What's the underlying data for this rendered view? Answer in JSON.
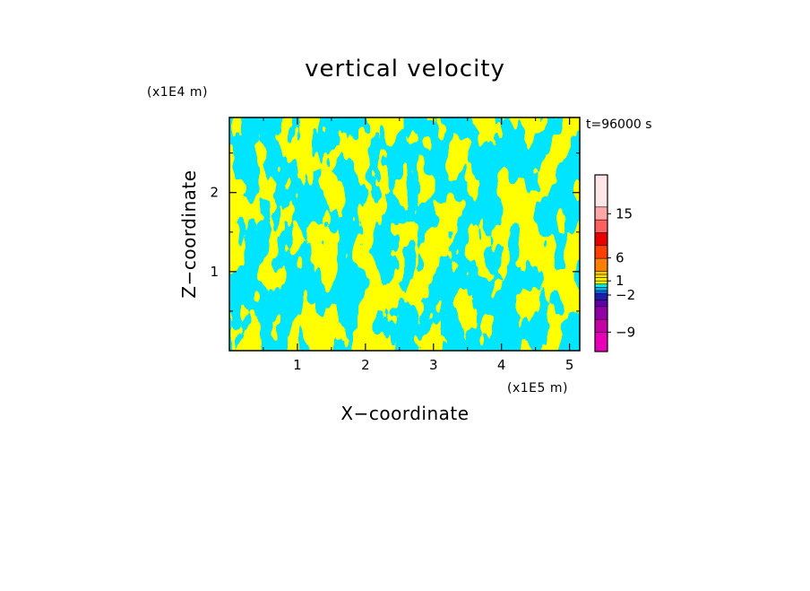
{
  "chart_data": {
    "type": "heatmap",
    "title": "vertical velocity",
    "xlabel": "X−coordinate",
    "ylabel": "Z−coordinate",
    "x_unit": "(x1E5 m)",
    "y_unit": "(x1E4 m)",
    "time_label": "t=96000 s",
    "xlim": [
      0.0,
      5.15
    ],
    "ylim": [
      0.0,
      2.95
    ],
    "x_ticks": [
      1,
      2,
      3,
      4,
      5
    ],
    "y_ticks": [
      1,
      2
    ],
    "x_tick_labels": [
      "1",
      "2",
      "3",
      "4",
      "5"
    ],
    "y_tick_labels": [
      "1",
      "2"
    ],
    "field_colors": {
      "positive": "#ffff00",
      "negative": "#00e5ff"
    },
    "colorbar": {
      "colors": [
        "#e800b8",
        "#c400a6",
        "#9400a8",
        "#6000a8",
        "#1e1ea8",
        "#0060e8",
        "#00b8f0",
        "#00f0f0",
        "#ffff00",
        "#fff000",
        "#ffe000",
        "#ffc800",
        "#ff8000",
        "#ff4000",
        "#e80000",
        "#ff6060",
        "#ffa8a8",
        "#ffe6e6"
      ],
      "weights": [
        3,
        2,
        2,
        1,
        1,
        0.5,
        0.5,
        0.5,
        0.5,
        0.5,
        0.5,
        0.5,
        2,
        2,
        2,
        2,
        2,
        5
      ],
      "labels": [
        {
          "text": "−9",
          "at": 0.11
        },
        {
          "text": "−2",
          "at": 0.32
        },
        {
          "text": "1",
          "at": 0.4
        },
        {
          "text": "6",
          "at": 0.53
        },
        {
          "text": "15",
          "at": 0.78
        }
      ]
    }
  }
}
